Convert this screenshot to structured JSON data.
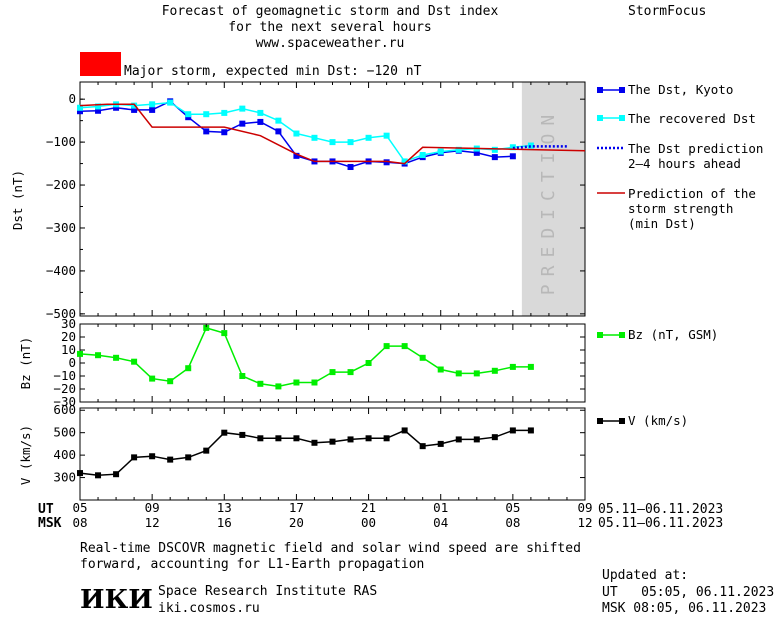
{
  "header": {
    "title_lines": [
      "Forecast of geomagnetic storm and Dst index",
      "for the next several hours",
      "www.spaceweather.ru"
    ],
    "brand": "StormFocus",
    "storm_label": "Major storm, expected min Dst: −120 nT",
    "storm_color": "#ff0000"
  },
  "legend": {
    "dst_kyoto": "The Dst, Kyoto",
    "recovered": "The recovered Dst",
    "prediction_lines": [
      "The Dst prediction",
      "2–4 hours ahead"
    ],
    "strength_lines": [
      "Prediction of the",
      "storm strength",
      "(min Dst)"
    ],
    "bz": "Bz (nT, GSM)",
    "v": "V (km/s)"
  },
  "prediction_text": "PREDICTION",
  "time_axis": {
    "ut_label": "UT",
    "msk_label": "MSK",
    "ut_ticks": [
      "05",
      "09",
      "13",
      "17",
      "21",
      "01",
      "05",
      "09"
    ],
    "msk_ticks": [
      "08",
      "12",
      "16",
      "20",
      "00",
      "04",
      "08",
      "12"
    ],
    "ut_range": "05.11–06.11.2023",
    "msk_range": "05.11–06.11.2023"
  },
  "chart_data": [
    {
      "type": "line",
      "ylabel": "Dst (nT)",
      "ylim": [
        -505,
        40
      ],
      "yticks": [
        0,
        -100,
        -200,
        -300,
        -400,
        -500
      ],
      "x_hours_range": [
        0,
        28
      ],
      "prediction_shade": [
        24.5,
        28
      ],
      "series": [
        {
          "name": "The Dst, Kyoto",
          "color": "#0000ee",
          "x": [
            0,
            1,
            2,
            3,
            4,
            5,
            6,
            7,
            8,
            9,
            10,
            11,
            12,
            13,
            14,
            15,
            16,
            17,
            18,
            19,
            20,
            21,
            22,
            23,
            24
          ],
          "y": [
            -28,
            -27,
            -20,
            -25,
            -25,
            -5,
            -42,
            -75,
            -77,
            -57,
            -53,
            -75,
            -132,
            -145,
            -145,
            -158,
            -145,
            -147,
            -150,
            -135,
            -125,
            -120,
            -125,
            -135,
            -133
          ]
        },
        {
          "name": "The recovered Dst",
          "color": "#00ffff",
          "x": [
            0,
            1,
            2,
            3,
            4,
            5,
            6,
            7,
            8,
            9,
            10,
            11,
            12,
            13,
            14,
            15,
            16,
            17,
            18,
            19,
            20,
            21,
            22,
            23,
            24,
            25
          ],
          "y": [
            -20,
            -17,
            -12,
            -15,
            -12,
            -8,
            -35,
            -35,
            -32,
            -22,
            -32,
            -50,
            -80,
            -90,
            -100,
            -100,
            -90,
            -85,
            -145,
            -130,
            -122,
            -118,
            -115,
            -118,
            -112,
            -108
          ]
        },
        {
          "name": "The Dst prediction",
          "color": "#0000ee",
          "x": [
            24,
            24.5,
            25,
            25.5,
            26,
            26.5,
            27
          ],
          "y": [
            -114,
            -112,
            -110,
            -110,
            -110,
            -110,
            -110
          ]
        },
        {
          "name": "Prediction of the storm strength",
          "color": "#cc0000",
          "x": [
            0,
            1.5,
            3,
            4,
            8,
            10,
            12,
            13,
            17,
            18,
            19,
            28
          ],
          "y": [
            -15,
            -12,
            -12,
            -65,
            -65,
            -85,
            -128,
            -145,
            -145,
            -150,
            -112,
            -120
          ]
        }
      ]
    },
    {
      "type": "line",
      "ylabel": "Bz (nT)",
      "ylim": [
        -30,
        30
      ],
      "yticks": [
        30,
        20,
        10,
        0,
        -10,
        -20,
        -30
      ],
      "series": [
        {
          "name": "Bz (nT, GSM)",
          "color": "#00ee00",
          "x": [
            0,
            1,
            2,
            3,
            4,
            5,
            6,
            7,
            8,
            9,
            10,
            11,
            12,
            13,
            14,
            15,
            16,
            17,
            18,
            19,
            20,
            21,
            22,
            23,
            24,
            25
          ],
          "y": [
            7,
            6,
            4,
            1,
            -12,
            -14,
            -4,
            27,
            23,
            -10,
            -16,
            -18,
            -15,
            -15,
            -7,
            -7,
            0,
            13,
            13,
            4,
            -5,
            -8,
            -8,
            -6,
            -3,
            -3
          ]
        }
      ]
    },
    {
      "type": "line",
      "ylabel": "V (km/s)",
      "ylim": [
        200,
        610
      ],
      "yticks": [
        600,
        500,
        400,
        300
      ],
      "series": [
        {
          "name": "V (km/s)",
          "color": "#000000",
          "x": [
            0,
            1,
            2,
            3,
            4,
            5,
            6,
            7,
            8,
            9,
            10,
            11,
            12,
            13,
            14,
            15,
            16,
            17,
            18,
            19,
            20,
            21,
            22,
            23,
            24,
            25
          ],
          "y": [
            320,
            310,
            315,
            390,
            395,
            380,
            390,
            420,
            500,
            490,
            475,
            475,
            475,
            455,
            460,
            470,
            475,
            475,
            510,
            440,
            450,
            470,
            470,
            480,
            510,
            510
          ]
        }
      ]
    }
  ],
  "footer": {
    "note_lines": [
      "Real-time DSCOVR magnetic field and solar wind speed are shifted",
      "forward, accounting for L1-Earth propagation"
    ],
    "logo_text": "ИКИ",
    "institute": "Space Research Institute RAS",
    "url": "iki.cosmos.ru",
    "updated_label": "Updated at:",
    "updated_ut": "UT   05:05, 06.11.2023",
    "updated_msk": "MSK 08:05, 06.11.2023"
  }
}
